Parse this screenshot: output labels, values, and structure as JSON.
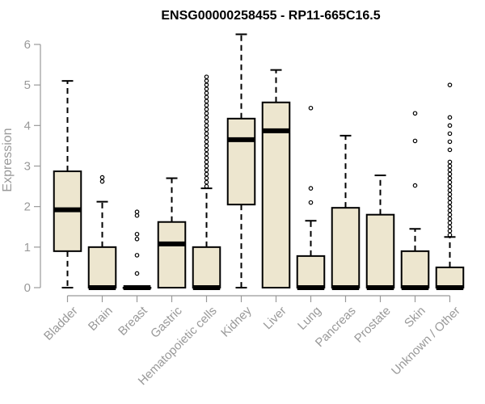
{
  "chart_data": {
    "type": "box",
    "title": "ENSG00000258455 - RP11-665C16.5",
    "xlabel": "",
    "ylabel": "Expression",
    "ylim": [
      0,
      6.3
    ],
    "yticks": [
      "0",
      "1",
      "2",
      "3",
      "4",
      "5",
      "6"
    ],
    "colors": {
      "box_fill": "#ede6cf",
      "stroke": "#000000",
      "axis": "#999999"
    },
    "categories": [
      "Bladder",
      "Brain",
      "Breast",
      "Gastric",
      "Hematopoietic cells",
      "Kidney",
      "Liver",
      "Lung",
      "Pancreas",
      "Prostate",
      "Skin",
      "Unknown / Other"
    ],
    "boxes": [
      {
        "category": "Bladder",
        "whisker_low": 0,
        "q1": 0.9,
        "median": 1.92,
        "q3": 2.87,
        "whisker_high": 5.1,
        "outliers": []
      },
      {
        "category": "Brain",
        "whisker_low": 0,
        "q1": 0,
        "median": 0,
        "q3": 1.0,
        "whisker_high": 2.12,
        "outliers": [
          2.62,
          2.72
        ]
      },
      {
        "category": "Breast",
        "whisker_low": 0,
        "q1": 0,
        "median": 0,
        "q3": 0,
        "whisker_high": 0,
        "outliers": [
          0.35,
          0.8,
          1.2,
          1.32,
          1.78,
          1.87
        ]
      },
      {
        "category": "Gastric",
        "whisker_low": 0,
        "q1": 0,
        "median": 1.08,
        "q3": 1.62,
        "whisker_high": 2.7,
        "outliers": []
      },
      {
        "category": "Hematopoietic cells",
        "whisker_low": 0,
        "q1": 0,
        "median": 0,
        "q3": 1.0,
        "whisker_high": 2.45,
        "outliers": [
          2.5,
          2.6,
          2.7,
          2.8,
          2.9,
          3.0,
          3.1,
          3.2,
          3.3,
          3.4,
          3.5,
          3.6,
          3.7,
          3.8,
          3.9,
          4.0,
          4.1,
          4.2,
          4.3,
          4.4,
          4.5,
          4.6,
          4.7,
          4.8,
          4.9,
          5.0,
          5.1,
          5.2
        ]
      },
      {
        "category": "Kidney",
        "whisker_low": 0,
        "q1": 2.05,
        "median": 3.65,
        "q3": 4.17,
        "whisker_high": 6.25,
        "outliers": []
      },
      {
        "category": "Liver",
        "whisker_low": 0,
        "q1": 0,
        "median": 3.87,
        "q3": 4.57,
        "whisker_high": 5.37,
        "outliers": []
      },
      {
        "category": "Lung",
        "whisker_low": 0,
        "q1": 0,
        "median": 0,
        "q3": 0.78,
        "whisker_high": 1.65,
        "outliers": [
          2.1,
          2.45,
          4.43
        ]
      },
      {
        "category": "Pancreas",
        "whisker_low": 0,
        "q1": 0,
        "median": 0,
        "q3": 1.97,
        "whisker_high": 3.75,
        "outliers": []
      },
      {
        "category": "Prostate",
        "whisker_low": 0,
        "q1": 0,
        "median": 0,
        "q3": 1.8,
        "whisker_high": 2.77,
        "outliers": []
      },
      {
        "category": "Skin",
        "whisker_low": 0,
        "q1": 0,
        "median": 0,
        "q3": 0.9,
        "whisker_high": 1.45,
        "outliers": [
          2.52,
          3.62,
          4.3
        ]
      },
      {
        "category": "Unknown / Other",
        "whisker_low": 0,
        "q1": 0,
        "median": 0,
        "q3": 0.5,
        "whisker_high": 1.25,
        "outliers": [
          1.3,
          1.4,
          1.5,
          1.6,
          1.7,
          1.8,
          1.9,
          2.0,
          2.1,
          2.2,
          2.3,
          2.4,
          2.5,
          2.6,
          2.7,
          2.8,
          2.9,
          3.0,
          3.1,
          3.4,
          3.6,
          3.8,
          4.0,
          4.2,
          5.0
        ]
      }
    ]
  }
}
